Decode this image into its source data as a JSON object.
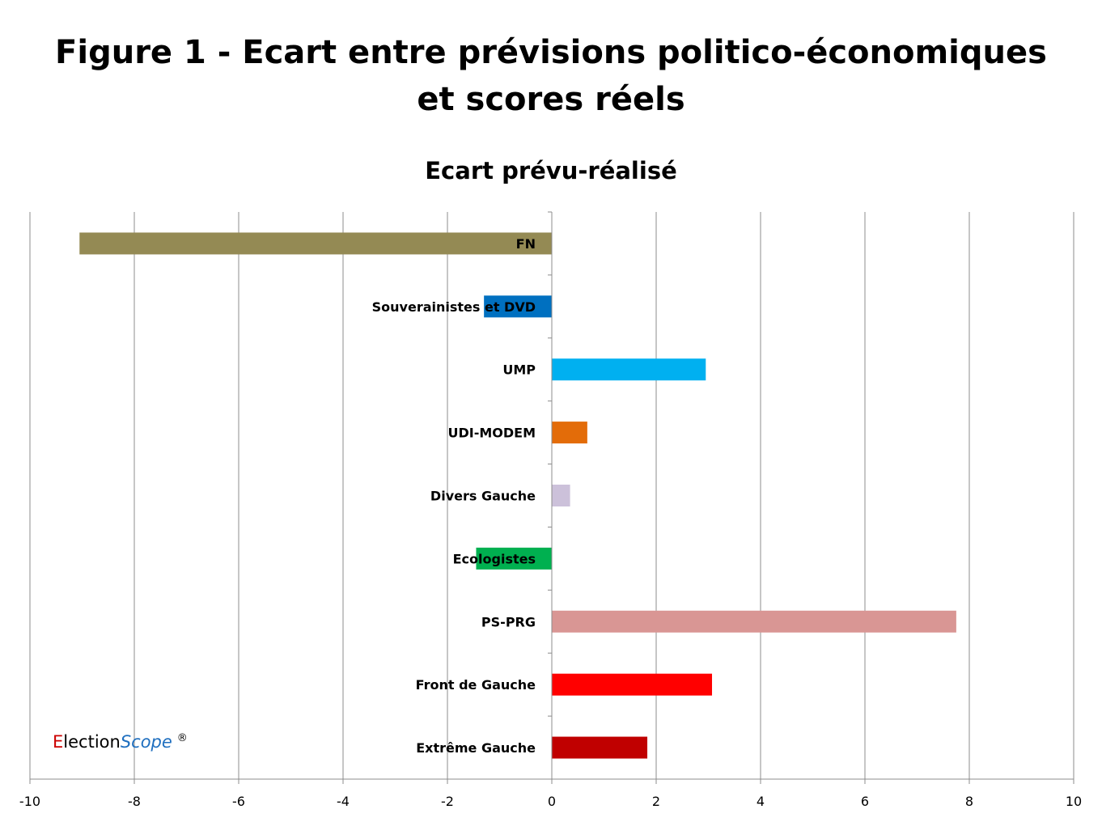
{
  "figure_title": {
    "line1": "Figure 1 - Ecart entre prévisions politico-économiques",
    "line2": "et scores réels"
  },
  "chart_data": {
    "type": "bar",
    "orientation": "horizontal",
    "title": "Ecart prévu-réalisé",
    "xlabel": "",
    "ylabel": "",
    "xlim": [
      -10,
      10
    ],
    "xticks": [
      -10,
      -8,
      -6,
      -4,
      -2,
      0,
      2,
      4,
      6,
      8,
      10
    ],
    "grid": true,
    "legend": "none",
    "categories": [
      "FN",
      "Souverainistes et DVD",
      "UMP",
      "UDI-MODEM",
      "Divers Gauche",
      "Ecologistes",
      "PS-PRG",
      "Front de Gauche",
      "Extrême Gauche"
    ],
    "values": [
      -9.05,
      -1.3,
      2.95,
      0.68,
      0.35,
      -1.45,
      7.75,
      3.07,
      1.83
    ],
    "colors": [
      "#948a54",
      "#0070c0",
      "#00b0f0",
      "#e36c09",
      "#ccc1da",
      "#00b050",
      "#d99694",
      "#ff0000",
      "#c00000"
    ]
  },
  "brand": {
    "first_letter": "E",
    "part1": "lection",
    "part2": "Scope",
    "mark": "®"
  }
}
